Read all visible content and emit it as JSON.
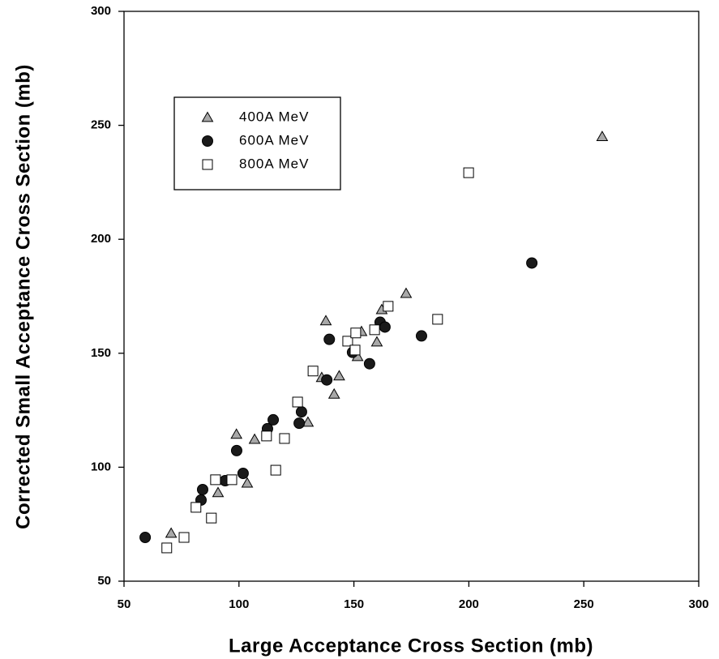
{
  "chart_data": {
    "type": "scatter",
    "x_label": "Large Acceptance Cross Section (mb)",
    "y_label": "Corrected Small Acceptance Cross Section (mb)",
    "xlim": [
      50,
      300
    ],
    "ylim": [
      50,
      300
    ],
    "xticks": [
      50,
      100,
      150,
      200,
      250,
      300
    ],
    "yticks": [
      50,
      100,
      150,
      200,
      250,
      300
    ],
    "grid": false,
    "legend": "upper left",
    "series": [
      {
        "name": "400A MeV",
        "marker": "triangle",
        "color": "#a8a8a8",
        "x": [
          70.5,
          90.9,
          98.9,
          103.6,
          106.8,
          130,
          136,
          137.8,
          141.4,
          143.6,
          151.6,
          153.3,
          160,
          162.1,
          172.7,
          258
        ],
        "values": [
          71,
          88.8,
          114.4,
          93,
          112.2,
          119.7,
          139.3,
          164.2,
          132,
          140,
          148.5,
          159.5,
          154.9,
          169.1,
          176.2,
          245
        ]
      },
      {
        "name": "600A MeV",
        "marker": "circle",
        "color": "#1a1a1a",
        "x": [
          59.2,
          84.2,
          83.5,
          94,
          99,
          101.8,
          112.4,
          114.9,
          126.2,
          127.2,
          138.2,
          139.3,
          149.4,
          156.8,
          161.4,
          163.5,
          179.4,
          227.4
        ],
        "values": [
          69.2,
          90.2,
          85.6,
          94.1,
          107.3,
          97.3,
          116.9,
          120.8,
          119.3,
          124.3,
          138.3,
          156.1,
          150.4,
          145.4,
          163.6,
          161.5,
          157.6,
          189.6
        ]
      },
      {
        "name": "800A MeV",
        "marker": "square",
        "color": "#ffffff",
        "x": [
          68.6,
          76.1,
          81.3,
          88,
          89.8,
          96.9,
          112,
          116,
          119.8,
          125.5,
          132.2,
          147.3,
          150.5,
          150.8,
          159,
          164.9,
          186.4,
          199.9
        ],
        "values": [
          64.6,
          69.2,
          82.4,
          77.7,
          94.5,
          94.5,
          113.7,
          98.7,
          112.6,
          128.6,
          142.2,
          155.3,
          151.4,
          158.9,
          160.3,
          170.6,
          164.9,
          229.2
        ]
      }
    ]
  }
}
